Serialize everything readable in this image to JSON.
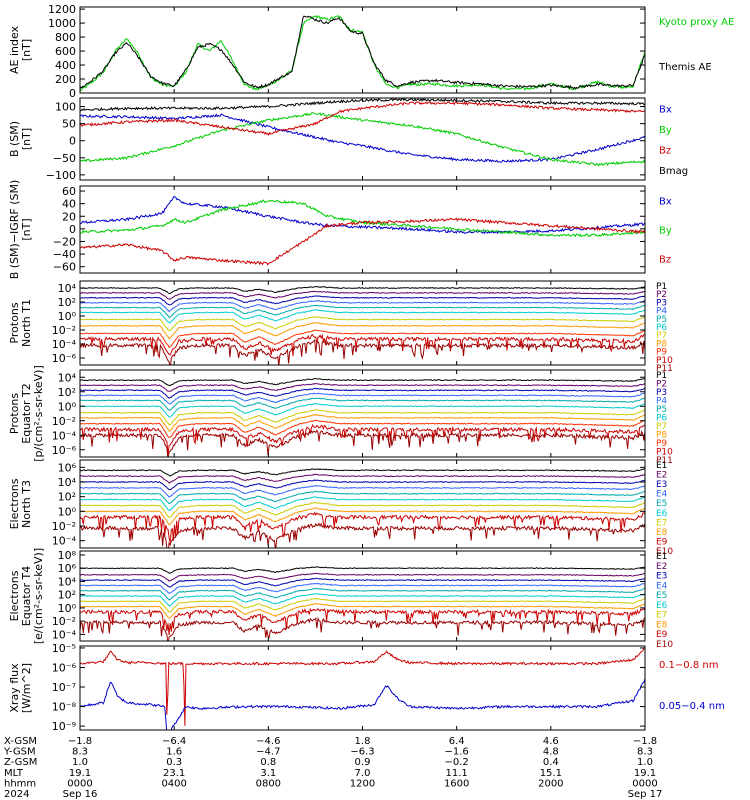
{
  "chart_data": [
    {
      "type": "line",
      "ylabel": [
        "AE index",
        "[nT]"
      ],
      "yticks": [
        "1200",
        "1000",
        "800",
        "600",
        "400",
        "200",
        "0"
      ],
      "ytick_values": [
        1200,
        1000,
        800,
        600,
        400,
        200,
        0
      ],
      "ylim": [
        0,
        1230
      ],
      "log": false,
      "series": [
        {
          "name": "Kyoto proxy AE",
          "color": "#00cc00",
          "x": [
            0,
            0.5,
            1,
            1.5,
            2,
            2.5,
            3,
            3.5,
            4,
            4.5,
            5,
            5.5,
            6,
            6.5,
            7,
            7.5,
            8,
            8.5,
            9,
            9.5,
            10,
            10.5,
            11,
            11.5,
            12,
            12.5,
            13,
            13.5,
            14,
            15,
            16,
            17,
            18,
            19,
            20,
            21,
            22,
            22.5,
            23,
            23.5,
            24
          ],
          "y": [
            30,
            150,
            300,
            600,
            780,
            550,
            220,
            120,
            90,
            300,
            700,
            600,
            750,
            450,
            120,
            50,
            110,
            200,
            320,
            1000,
            1100,
            1050,
            1100,
            900,
            870,
            400,
            120,
            80,
            120,
            130,
            100,
            120,
            60,
            60,
            130,
            60,
            160,
            100,
            80,
            90,
            600
          ]
        },
        {
          "name": "Themis AE",
          "color": "#000000",
          "x": [
            0,
            0.5,
            1,
            1.5,
            2,
            2.5,
            3,
            3.5,
            4,
            4.5,
            5,
            5.5,
            6,
            6.5,
            7,
            7.5,
            8,
            8.5,
            9,
            9.5,
            10,
            10.5,
            11,
            11.5,
            12,
            12.5,
            13,
            13.5,
            14,
            15,
            16,
            17,
            18,
            19,
            20,
            21,
            22,
            22.5,
            23,
            23.5,
            24
          ],
          "y": [
            60,
            180,
            320,
            570,
            720,
            500,
            240,
            140,
            100,
            330,
            650,
            700,
            620,
            400,
            150,
            80,
            120,
            220,
            300,
            1120,
            1050,
            1000,
            1080,
            880,
            850,
            420,
            180,
            100,
            150,
            180,
            150,
            130,
            100,
            90,
            110,
            80,
            120,
            110,
            100,
            110,
            550
          ]
        }
      ],
      "legend": [
        "Kyoto proxy AE",
        "Themis AE"
      ],
      "legend_colors": [
        "#00cc00",
        "#000000"
      ]
    },
    {
      "type": "line",
      "ylabel": [
        "B (SM)",
        "[nT]"
      ],
      "yticks": [
        "100",
        "50",
        "0",
        "−50",
        "−100"
      ],
      "ytick_values": [
        100,
        50,
        0,
        -50,
        -100
      ],
      "ylim": [
        -115,
        125
      ],
      "log": false,
      "series": [
        {
          "name": "Bx",
          "color": "#0000cc",
          "x": [
            0,
            2,
            4,
            6,
            8,
            10,
            11,
            12,
            14,
            16,
            18,
            20,
            22,
            24
          ],
          "y": [
            72,
            70,
            65,
            75,
            40,
            10,
            -5,
            -15,
            -40,
            -55,
            -60,
            -55,
            -25,
            10
          ]
        },
        {
          "name": "By",
          "color": "#00cc00",
          "x": [
            0,
            2,
            4,
            6,
            8,
            10,
            11,
            12,
            14,
            16,
            18,
            20,
            22,
            24
          ],
          "y": [
            -60,
            -50,
            -15,
            30,
            60,
            80,
            70,
            60,
            45,
            20,
            -20,
            -55,
            -70,
            -60
          ]
        },
        {
          "name": "Bz",
          "color": "#cc0000",
          "x": [
            0,
            2,
            4,
            6,
            8,
            10,
            11,
            12,
            14,
            16,
            18,
            20,
            22,
            24
          ],
          "y": [
            45,
            55,
            60,
            40,
            20,
            50,
            85,
            95,
            110,
            110,
            105,
            95,
            90,
            85
          ]
        },
        {
          "name": "Bmag",
          "color": "#000000",
          "x": [
            0,
            2,
            4,
            6,
            8,
            10,
            11,
            12,
            14,
            16,
            18,
            20,
            22,
            24
          ],
          "y": [
            90,
            95,
            95,
            95,
            100,
            110,
            115,
            118,
            120,
            118,
            115,
            110,
            110,
            108
          ]
        }
      ],
      "legend": [
        "Bx",
        "By",
        "Bz",
        "Bmag"
      ],
      "legend_colors": [
        "#0000cc",
        "#00cc00",
        "#cc0000",
        "#000000"
      ]
    },
    {
      "type": "line",
      "ylabel": [
        "B (SM)−IGRF (SM)",
        "[nT]"
      ],
      "yticks": [
        "60",
        "40",
        "20",
        "0",
        "−20",
        "−40",
        "−60"
      ],
      "ytick_values": [
        60,
        40,
        20,
        0,
        -20,
        -40,
        -60
      ],
      "ylim": [
        -70,
        68
      ],
      "log": false,
      "series": [
        {
          "name": "Bx",
          "color": "#0000cc",
          "x": [
            0,
            2,
            3.5,
            4,
            4.5,
            6,
            8,
            9.5,
            10.5,
            12,
            14,
            16,
            18,
            20,
            22,
            24
          ],
          "y": [
            10,
            15,
            25,
            50,
            40,
            35,
            20,
            10,
            5,
            3,
            0,
            -5,
            -5,
            -3,
            2,
            8
          ]
        },
        {
          "name": "By",
          "color": "#00cc00",
          "x": [
            0,
            2,
            3.5,
            4,
            4.5,
            6,
            8,
            9.5,
            10.5,
            12,
            14,
            16,
            18,
            20,
            22,
            24
          ],
          "y": [
            -5,
            -2,
            5,
            15,
            10,
            30,
            45,
            40,
            20,
            10,
            5,
            0,
            -5,
            -10,
            -10,
            -5
          ]
        },
        {
          "name": "Bz",
          "color": "#cc0000",
          "x": [
            0,
            2,
            3.5,
            4,
            4.5,
            6,
            8,
            9.5,
            10.5,
            12,
            14,
            16,
            18,
            20,
            22,
            24
          ],
          "y": [
            -30,
            -25,
            -35,
            -50,
            -45,
            -50,
            -55,
            -20,
            5,
            10,
            12,
            15,
            10,
            5,
            0,
            -5
          ]
        }
      ],
      "legend": [
        "Bx",
        "By",
        "Bz"
      ],
      "legend_colors": [
        "#0000cc",
        "#00cc00",
        "#cc0000"
      ]
    },
    {
      "type": "line",
      "ylabel": [
        "Protons",
        "North T1"
      ],
      "yticks": [
        "10⁴",
        "10²",
        "10⁰",
        "10⁻²",
        "10⁻⁴",
        "10⁻⁶"
      ],
      "ytick_values": [
        4,
        2,
        0,
        -2,
        -4,
        -6
      ],
      "ylim": [
        -7,
        5
      ],
      "log": true,
      "y_unit_note": "log10 flux",
      "channels": [
        {
          "name": "P1",
          "color": "#000000",
          "level": 4.0
        },
        {
          "name": "P2",
          "color": "#660066",
          "level": 3.3
        },
        {
          "name": "P3",
          "color": "#0000aa",
          "level": 2.6
        },
        {
          "name": "P4",
          "color": "#3366ff",
          "level": 1.9
        },
        {
          "name": "P5",
          "color": "#00aaaa",
          "level": 1.2
        },
        {
          "name": "P6",
          "color": "#00cccc",
          "level": 0.5
        },
        {
          "name": "P7",
          "color": "#cccc00",
          "level": -0.5
        },
        {
          "name": "P8",
          "color": "#ff9900",
          "level": -1.4
        },
        {
          "name": "P9",
          "color": "#ff3300",
          "level": -2.5
        },
        {
          "name": "P10",
          "color": "#cc0000",
          "level": -3.3
        },
        {
          "name": "P11",
          "color": "#990000",
          "level": -4.2
        }
      ]
    },
    {
      "type": "line",
      "ylabel": [
        "Protons",
        "Equator T2",
        "[p/(cm²-s-sr-keV)]"
      ],
      "yticks": [
        "10⁴",
        "10²",
        "10⁰",
        "10⁻²",
        "10⁻⁴",
        "10⁻⁶"
      ],
      "ytick_values": [
        4,
        2,
        0,
        -2,
        -4,
        -6
      ],
      "ylim": [
        -7,
        5
      ],
      "log": true,
      "channels": [
        {
          "name": "P1",
          "color": "#000000",
          "level": 3.6
        },
        {
          "name": "P2",
          "color": "#660066",
          "level": 2.9
        },
        {
          "name": "P3",
          "color": "#0000aa",
          "level": 2.2
        },
        {
          "name": "P4",
          "color": "#3366ff",
          "level": 1.5
        },
        {
          "name": "P5",
          "color": "#00aaaa",
          "level": 0.8
        },
        {
          "name": "P6",
          "color": "#00cccc",
          "level": 0.0
        },
        {
          "name": "P7",
          "color": "#cccc00",
          "level": -0.9
        },
        {
          "name": "P8",
          "color": "#ff9900",
          "level": -1.6
        },
        {
          "name": "P9",
          "color": "#ff3300",
          "level": -2.4
        },
        {
          "name": "P10",
          "color": "#cc0000",
          "level": -3.2
        },
        {
          "name": "P11",
          "color": "#990000",
          "level": -4.0
        }
      ]
    },
    {
      "type": "line",
      "ylabel": [
        "Electrons",
        "North T3"
      ],
      "yticks": [
        "10⁶",
        "10⁴",
        "10²",
        "10⁰",
        "10⁻²",
        "10⁻⁴"
      ],
      "ytick_values": [
        6,
        4,
        2,
        0,
        -2,
        -4
      ],
      "ylim": [
        -5,
        7
      ],
      "log": true,
      "channels": [
        {
          "name": "E1",
          "color": "#000000",
          "level": 5.6
        },
        {
          "name": "E2",
          "color": "#660066",
          "level": 4.8
        },
        {
          "name": "E3",
          "color": "#0000aa",
          "level": 4.0
        },
        {
          "name": "E4",
          "color": "#3366ff",
          "level": 3.2
        },
        {
          "name": "E5",
          "color": "#00aaaa",
          "level": 2.4
        },
        {
          "name": "E6",
          "color": "#00cccc",
          "level": 1.6
        },
        {
          "name": "E7",
          "color": "#cccc00",
          "level": 0.8
        },
        {
          "name": "E8",
          "color": "#ff9900",
          "level": 0.0
        },
        {
          "name": "E9",
          "color": "#cc0000",
          "level": -0.8
        },
        {
          "name": "E10",
          "color": "#990000",
          "level": -2.3
        }
      ]
    },
    {
      "type": "line",
      "ylabel": [
        "Electrons",
        "Equator T4",
        "[e/(cm²-s-sr-keV)]"
      ],
      "yticks": [
        "10⁸",
        "10⁶",
        "10⁴",
        "10²",
        "10⁰",
        "10⁻²",
        "10⁻⁴"
      ],
      "ytick_values": [
        8,
        6,
        4,
        2,
        0,
        -2,
        -4
      ],
      "ylim": [
        -5,
        8.6
      ],
      "log": true,
      "channels": [
        {
          "name": "E1",
          "color": "#000000",
          "level": 6.0
        },
        {
          "name": "E2",
          "color": "#660066",
          "level": 5.0
        },
        {
          "name": "E3",
          "color": "#0000aa",
          "level": 4.2
        },
        {
          "name": "E4",
          "color": "#3366ff",
          "level": 3.4
        },
        {
          "name": "E5",
          "color": "#00aaaa",
          "level": 2.6
        },
        {
          "name": "E6",
          "color": "#00cccc",
          "level": 1.8
        },
        {
          "name": "E7",
          "color": "#cccc00",
          "level": 1.0
        },
        {
          "name": "E8",
          "color": "#ff9900",
          "level": 0.2
        },
        {
          "name": "E9",
          "color": "#cc0000",
          "level": -0.6
        },
        {
          "name": "E10",
          "color": "#990000",
          "level": -2.2
        }
      ]
    },
    {
      "type": "line",
      "ylabel": [
        "Xray flux",
        "[W/m^2]"
      ],
      "yticks": [
        "10⁻⁵",
        "10⁻⁶",
        "10⁻⁷",
        "10⁻⁸",
        "10⁻⁹"
      ],
      "ytick_values": [
        -5,
        -6,
        -7,
        -8,
        -9
      ],
      "ylim": [
        -9.2,
        -4.9
      ],
      "log": true,
      "series": [
        {
          "name": "0.1−0.8 nm",
          "color": "#cc0000",
          "x": [
            0,
            1,
            1.3,
            1.6,
            2,
            3,
            3.65,
            3.7,
            3.75,
            4.4,
            4.45,
            4.5,
            5,
            7,
            9,
            11,
            12.5,
            13,
            13.5,
            14,
            16,
            18,
            20,
            22,
            23.5,
            24
          ],
          "y": [
            -5.8,
            -5.7,
            -5.2,
            -5.6,
            -5.75,
            -5.75,
            -5.8,
            -9.5,
            -5.8,
            -5.8,
            -9.5,
            -5.8,
            -5.8,
            -5.8,
            -5.8,
            -5.8,
            -5.7,
            -5.2,
            -5.6,
            -5.75,
            -5.8,
            -5.8,
            -5.8,
            -5.8,
            -5.6,
            -5.0
          ]
        },
        {
          "name": "0.05−0.4 nm",
          "color": "#0000cc",
          "x": [
            0,
            1,
            1.3,
            1.6,
            2,
            3,
            3.6,
            3.7,
            4.5,
            5,
            7,
            9,
            11,
            12.5,
            13,
            13.5,
            14,
            16,
            18,
            20,
            22,
            23.5,
            24
          ],
          "y": [
            -8.0,
            -7.8,
            -6.7,
            -7.5,
            -7.8,
            -7.9,
            -8.0,
            -9.5,
            -8.0,
            -8.1,
            -8.0,
            -8.0,
            -8.1,
            -7.9,
            -6.9,
            -7.6,
            -8.0,
            -8.1,
            -8.0,
            -8.0,
            -8.0,
            -7.7,
            -6.6
          ]
        }
      ],
      "legend": [
        "0.1−0.8 nm",
        "0.05−0.4 nm"
      ],
      "legend_colors": [
        "#cc0000",
        "#0000cc"
      ]
    }
  ],
  "x_axis": {
    "ylabels": [
      "X-GSM",
      "Y-GSM",
      "Z-GSM",
      "MLT",
      "hhmm",
      "2024"
    ],
    "ticks": [
      {
        "hour": 0,
        "values": [
          "−1.8",
          "8.3",
          "1.0",
          "19.1",
          "0000",
          "Sep 16"
        ]
      },
      {
        "hour": 4,
        "values": [
          "−6.4",
          "1.6",
          "0.3",
          "23.1",
          "0400",
          ""
        ]
      },
      {
        "hour": 8,
        "values": [
          "−4.6",
          "−4.7",
          "0.8",
          "3.1",
          "0800",
          ""
        ]
      },
      {
        "hour": 12,
        "values": [
          "1.8",
          "−6.3",
          "0.9",
          "7.0",
          "1200",
          ""
        ]
      },
      {
        "hour": 16,
        "values": [
          "6.4",
          "−1.6",
          "−0.2",
          "11.1",
          "1600",
          ""
        ]
      },
      {
        "hour": 20,
        "values": [
          "4.6",
          "4.8",
          "0.4",
          "15.1",
          "2000",
          ""
        ]
      },
      {
        "hour": 24,
        "values": [
          "−1.8",
          "8.3",
          "1.0",
          "19.1",
          "0000",
          "Sep 17"
        ]
      }
    ],
    "range": [
      0,
      24
    ]
  }
}
